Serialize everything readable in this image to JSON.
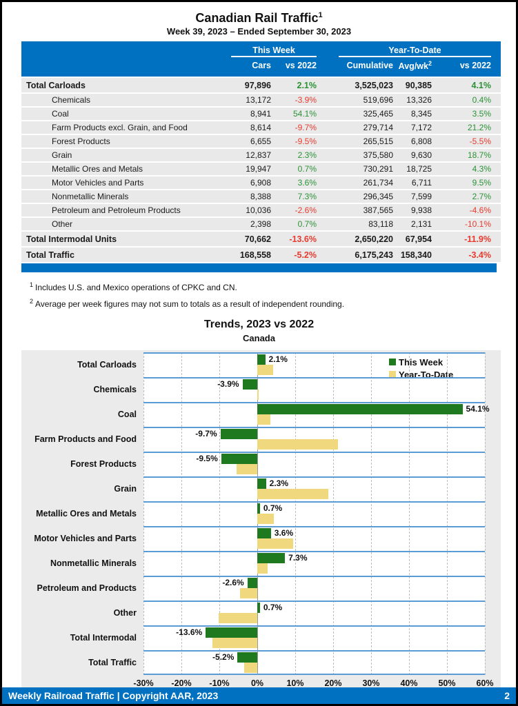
{
  "page": {
    "title": "Canadian Rail Traffic",
    "title_footnote": "1",
    "subtitle": "Week 39, 2023 – Ended September 30, 2023",
    "footer": {
      "left": "Weekly Railroad Traffic | Copyright AAR, 2023",
      "page_number": "2"
    }
  },
  "colors": {
    "header_blue": "#0070c0",
    "separator_blue": "#5b9bd5",
    "row_gray": "#e9e9e9",
    "panel_gray": "#ebebeb",
    "bar_green": "#1f7a1f",
    "bar_tan": "#f0d87f",
    "positive_green": "#2a9235",
    "negative_red": "#e83a2e"
  },
  "table": {
    "groups": [
      {
        "label": "This Week"
      },
      {
        "label": "Year-To-Date"
      }
    ],
    "columns": [
      "Cars",
      "vs 2022",
      "Cumulative",
      "Avg/wk",
      "vs 2022"
    ],
    "avg_wk_footnote": "2",
    "rows": [
      {
        "label": "Total Carloads",
        "bold": true,
        "cars": "97,896",
        "week_vs2022": "2.1%",
        "cumulative": "3,525,023",
        "avg_wk": "90,385",
        "ytd_vs2022": "4.1%"
      },
      {
        "label": "Chemicals",
        "cars": "13,172",
        "week_vs2022": "-3.9%",
        "cumulative": "519,696",
        "avg_wk": "13,326",
        "ytd_vs2022": "0.4%"
      },
      {
        "label": "Coal",
        "cars": "8,941",
        "week_vs2022": "54.1%",
        "cumulative": "325,465",
        "avg_wk": "8,345",
        "ytd_vs2022": "3.5%"
      },
      {
        "label": "Farm Products excl. Grain, and Food",
        "cars": "8,614",
        "week_vs2022": "-9.7%",
        "cumulative": "279,714",
        "avg_wk": "7,172",
        "ytd_vs2022": "21.2%"
      },
      {
        "label": "Forest Products",
        "cars": "6,655",
        "week_vs2022": "-9.5%",
        "cumulative": "265,515",
        "avg_wk": "6,808",
        "ytd_vs2022": "-5.5%"
      },
      {
        "label": "Grain",
        "cars": "12,837",
        "week_vs2022": "2.3%",
        "cumulative": "375,580",
        "avg_wk": "9,630",
        "ytd_vs2022": "18.7%"
      },
      {
        "label": "Metallic Ores and Metals",
        "cars": "19,947",
        "week_vs2022": "0.7%",
        "cumulative": "730,291",
        "avg_wk": "18,725",
        "ytd_vs2022": "4.3%"
      },
      {
        "label": "Motor Vehicles and Parts",
        "cars": "6,908",
        "week_vs2022": "3.6%",
        "cumulative": "261,734",
        "avg_wk": "6,711",
        "ytd_vs2022": "9.5%"
      },
      {
        "label": "Nonmetallic Minerals",
        "cars": "8,388",
        "week_vs2022": "7.3%",
        "cumulative": "296,345",
        "avg_wk": "7,599",
        "ytd_vs2022": "2.7%"
      },
      {
        "label": "Petroleum and Petroleum Products",
        "cars": "10,036",
        "week_vs2022": "-2.6%",
        "cumulative": "387,565",
        "avg_wk": "9,938",
        "ytd_vs2022": "-4.6%"
      },
      {
        "label": "Other",
        "cars": "2,398",
        "week_vs2022": "0.7%",
        "cumulative": "83,118",
        "avg_wk": "2,131",
        "ytd_vs2022": "-10.1%"
      },
      {
        "label": "Total Intermodal Units",
        "bold": true,
        "cars": "70,662",
        "week_vs2022": "-13.6%",
        "cumulative": "2,650,220",
        "avg_wk": "67,954",
        "ytd_vs2022": "-11.9%"
      },
      {
        "label": "Total Traffic",
        "bold": true,
        "cars": "168,558",
        "week_vs2022": "-5.2%",
        "cumulative": "6,175,243",
        "avg_wk": "158,340",
        "ytd_vs2022": "-3.4%"
      }
    ]
  },
  "footnotes": [
    {
      "marker": "1",
      "text": "Includes U.S. and Mexico operations of CPKC and CN."
    },
    {
      "marker": "2",
      "text": "Average per week figures may not sum to totals as a result of independent rounding."
    }
  ],
  "chart_data": {
    "type": "bar",
    "orientation": "horizontal",
    "title": "Trends, 2023 vs 2022",
    "subtitle": "Canada",
    "categories": [
      "Total Carloads",
      "Chemicals",
      "Coal",
      "Farm Products and Food",
      "Forest Products",
      "Grain",
      "Metallic Ores and Metals",
      "Motor Vehicles and Parts",
      "Nonmetallic Minerals",
      "Petroleum and Products",
      "Other",
      "Total Intermodal",
      "Total Traffic"
    ],
    "series": [
      {
        "name": "This Week",
        "color": "#1f7a1f",
        "values": [
          2.1,
          -3.9,
          54.1,
          -9.7,
          -9.5,
          2.3,
          0.7,
          3.6,
          7.3,
          -2.6,
          0.7,
          -13.6,
          -5.2
        ],
        "labels": [
          "2.1%",
          "-3.9%",
          "54.1%",
          "-9.7%",
          "-9.5%",
          "2.3%",
          "0.7%",
          "3.6%",
          "7.3%",
          "-2.6%",
          "0.7%",
          "-13.6%",
          "-5.2%"
        ]
      },
      {
        "name": "Year-To-Date",
        "color": "#f0d87f",
        "values": [
          4.1,
          0.4,
          3.5,
          21.2,
          -5.5,
          18.7,
          4.3,
          9.5,
          2.7,
          -4.6,
          -10.1,
          -11.9,
          -3.4
        ]
      }
    ],
    "xlim": [
      -30,
      60
    ],
    "x_ticks": [
      {
        "label": "-30%",
        "value": -30
      },
      {
        "label": "-20%",
        "value": -20
      },
      {
        "label": "-10%",
        "value": -10
      },
      {
        "label": "0%",
        "value": 0
      },
      {
        "label": "10%",
        "value": 10
      },
      {
        "label": "20%",
        "value": 20
      },
      {
        "label": "30%",
        "value": 30
      },
      {
        "label": "40%",
        "value": 40
      },
      {
        "label": "50%",
        "value": 50
      },
      {
        "label": "60%",
        "value": 60
      }
    ],
    "grid": "vertical-dashed",
    "legend_position": "top-right"
  }
}
